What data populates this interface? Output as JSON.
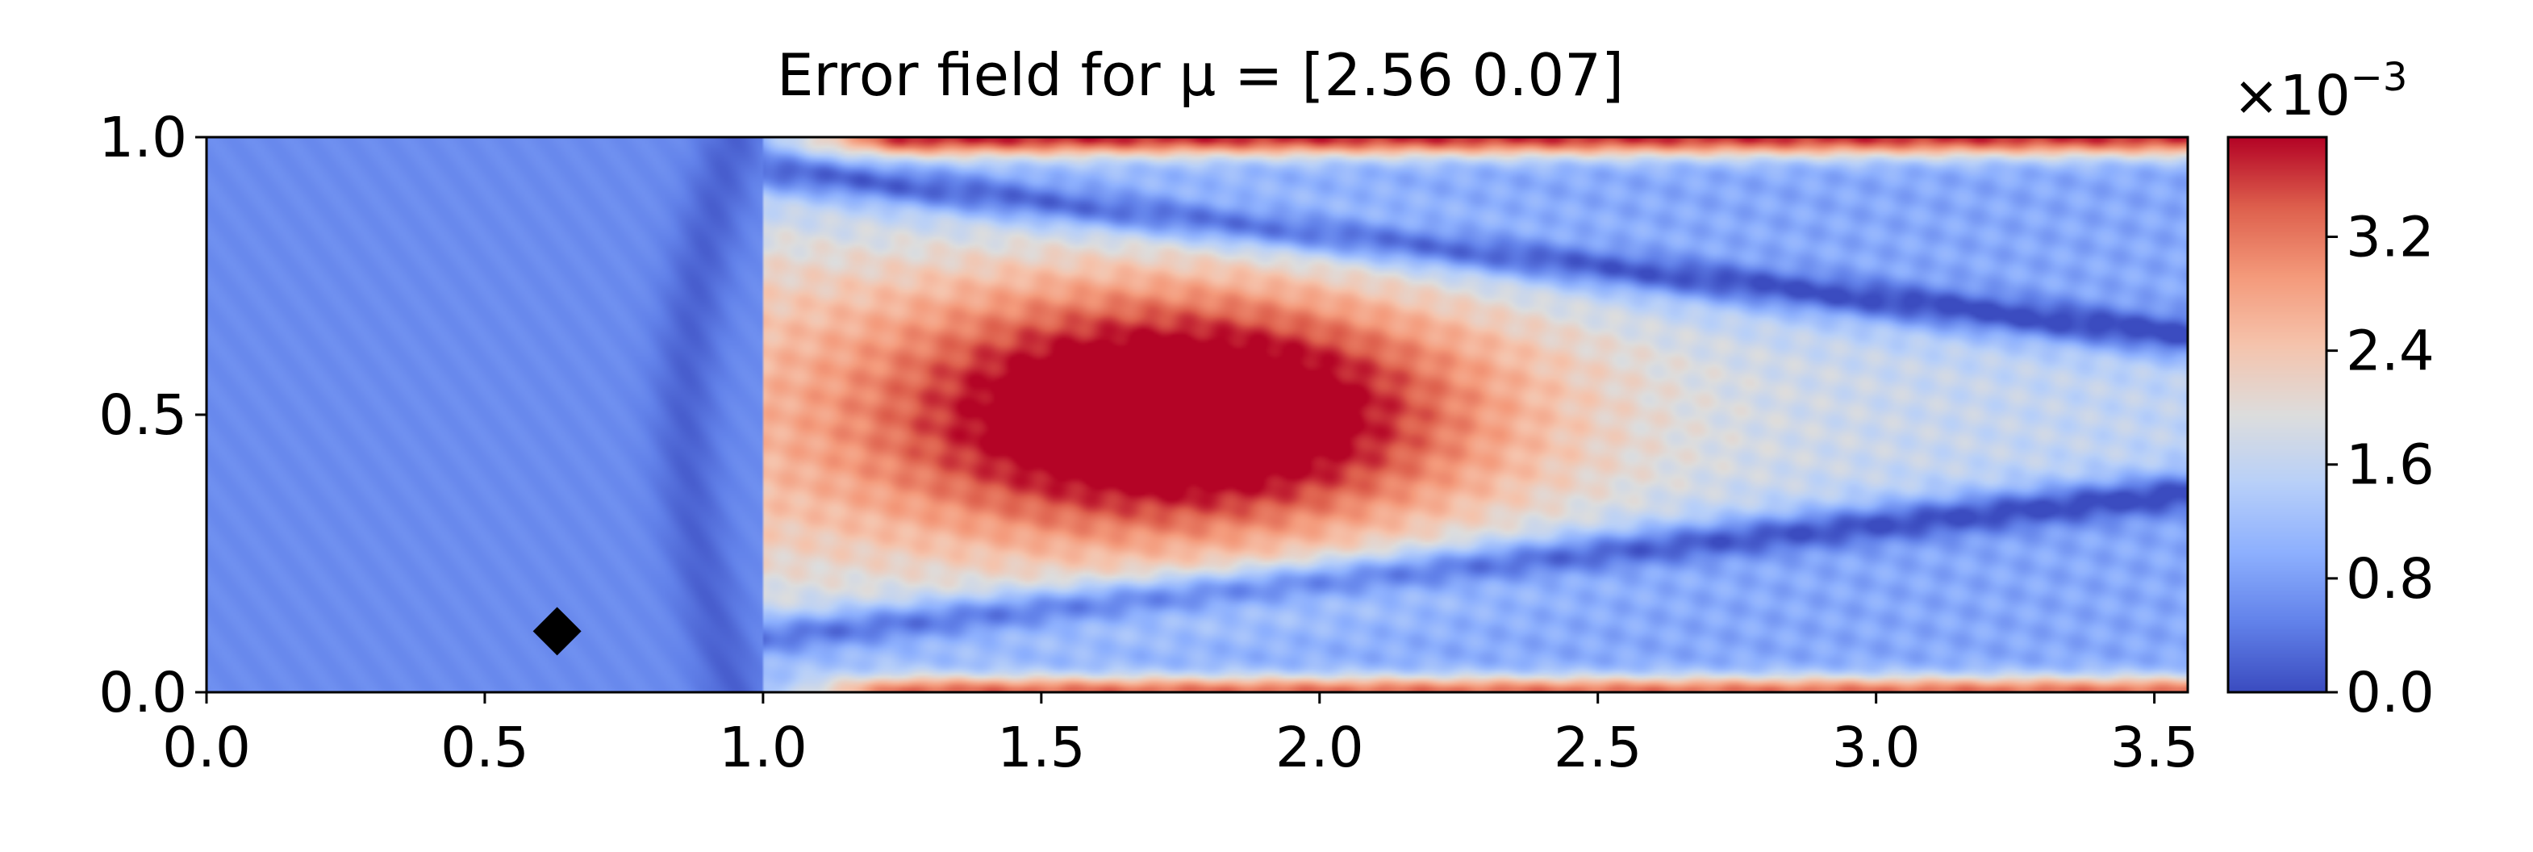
{
  "chart_data": {
    "type": "heatmap",
    "title": "Error field for μ = [2.56 0.07]",
    "xlabel": "",
    "ylabel": "",
    "xlim": [
      0,
      3.56
    ],
    "ylim": [
      0,
      1
    ],
    "x_ticks": [
      "0.0",
      "0.5",
      "1.0",
      "1.5",
      "2.0",
      "2.5",
      "3.0",
      "3.5"
    ],
    "y_ticks": [
      "0.0",
      "0.5",
      "1.0"
    ],
    "grid": false,
    "colormap": "coolwarm",
    "colorbar": {
      "range": [
        0.0,
        0.0039
      ],
      "ticks": [
        "0.0",
        "0.8",
        "1.6",
        "2.4",
        "3.2"
      ],
      "scale_label": "×10",
      "scale_exponent": "−3"
    },
    "marker": {
      "shape": "diamond",
      "color": "#000000",
      "x": 0.63,
      "y": 0.11
    },
    "field_description": {
      "background_value": 0.0006,
      "hot_spot_center": [
        1.75,
        0.5
      ],
      "hot_spot_peak": 0.0038,
      "edge_bands_value": 0.0028,
      "inlet_step_x": 1.0
    }
  }
}
